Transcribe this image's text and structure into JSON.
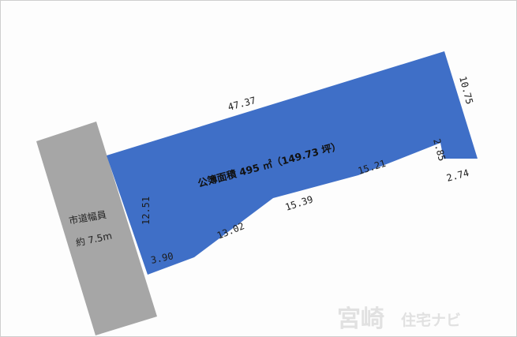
{
  "plot": {
    "area_label": "公簿面積 495 ㎡（149.73 坪）",
    "dimensions": {
      "top": "47.37",
      "right_top": "10.75",
      "notch_vertical": "2.85",
      "notch_horizontal": "2.74",
      "bottom_1": "15.21",
      "bottom_2": "15.39",
      "bottom_3": "13.02",
      "bottom_4": "3.90",
      "left": "12.51"
    }
  },
  "road": {
    "name": "市道幅員",
    "width": "約 7.5m"
  },
  "watermark": {
    "brand_kanji": "宮崎",
    "brand_kana": "住宅ナビ"
  },
  "colors": {
    "plot_fill": "#3f6fc7",
    "road_fill": "#a6a6a6"
  }
}
